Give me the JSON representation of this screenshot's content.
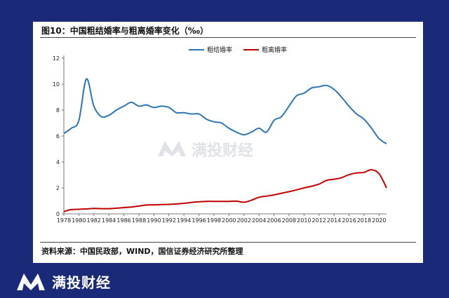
{
  "figure": {
    "title": "图10：中国粗结婚率与粗离婚率变化（‰）",
    "source": "资料来源：中国民政部，WIND，国信证券经济研究所整理"
  },
  "watermark": {
    "text": "满投财经",
    "logo_icon": "mantou-logo-icon"
  },
  "brand": {
    "text": "满投财经",
    "logo_icon": "mantou-logo-icon"
  },
  "chart_data": {
    "type": "line",
    "title": "",
    "xlabel": "",
    "ylabel": "",
    "ylim": [
      0,
      12
    ],
    "yticks": [
      0,
      2,
      4,
      6,
      8,
      10,
      12
    ],
    "xlim": [
      1978,
      2021
    ],
    "xticks": [
      1978,
      1980,
      1982,
      1984,
      1986,
      1988,
      1990,
      1992,
      1994,
      1996,
      1998,
      2000,
      2002,
      2004,
      2006,
      2008,
      2010,
      2012,
      2014,
      2016,
      2018,
      2020
    ],
    "grid": false,
    "legend_position": "top-center",
    "series": [
      {
        "name": "粗结婚率",
        "color": "#2e75b6",
        "x": [
          1978,
          1979,
          1980,
          1981,
          1982,
          1983,
          1984,
          1985,
          1986,
          1987,
          1988,
          1989,
          1990,
          1991,
          1992,
          1993,
          1994,
          1995,
          1996,
          1997,
          1998,
          1999,
          2000,
          2001,
          2002,
          2003,
          2004,
          2005,
          2006,
          2007,
          2008,
          2009,
          2010,
          2011,
          2012,
          2013,
          2014,
          2015,
          2016,
          2017,
          2018,
          2019,
          2020,
          2021
        ],
        "y": [
          6.2,
          6.6,
          7.2,
          10.4,
          8.3,
          7.5,
          7.6,
          8.0,
          8.3,
          8.6,
          8.3,
          8.4,
          8.2,
          8.3,
          8.2,
          7.8,
          7.8,
          7.7,
          7.7,
          7.3,
          7.1,
          7.0,
          6.6,
          6.3,
          6.1,
          6.3,
          6.6,
          6.3,
          7.2,
          7.5,
          8.3,
          9.1,
          9.3,
          9.7,
          9.8,
          9.9,
          9.6,
          9.0,
          8.3,
          7.7,
          7.3,
          6.6,
          5.8,
          5.4
        ]
      },
      {
        "name": "粗离婚率",
        "color": "#c00000",
        "x": [
          1978,
          1979,
          1980,
          1981,
          1982,
          1983,
          1984,
          1985,
          1986,
          1987,
          1988,
          1989,
          1990,
          1991,
          1992,
          1993,
          1994,
          1995,
          1996,
          1997,
          1998,
          1999,
          2000,
          2001,
          2002,
          2003,
          2004,
          2005,
          2006,
          2007,
          2008,
          2009,
          2010,
          2011,
          2012,
          2013,
          2014,
          2015,
          2016,
          2017,
          2018,
          2019,
          2020,
          2021
        ],
        "y": [
          0.18,
          0.33,
          0.35,
          0.38,
          0.42,
          0.4,
          0.4,
          0.44,
          0.48,
          0.53,
          0.6,
          0.68,
          0.69,
          0.72,
          0.73,
          0.76,
          0.81,
          0.88,
          0.93,
          0.96,
          0.96,
          0.96,
          0.96,
          0.98,
          0.9,
          1.05,
          1.28,
          1.37,
          1.46,
          1.59,
          1.71,
          1.85,
          2.0,
          2.13,
          2.29,
          2.58,
          2.67,
          2.79,
          3.02,
          3.15,
          3.2,
          3.4,
          3.1,
          2.0
        ]
      }
    ]
  }
}
